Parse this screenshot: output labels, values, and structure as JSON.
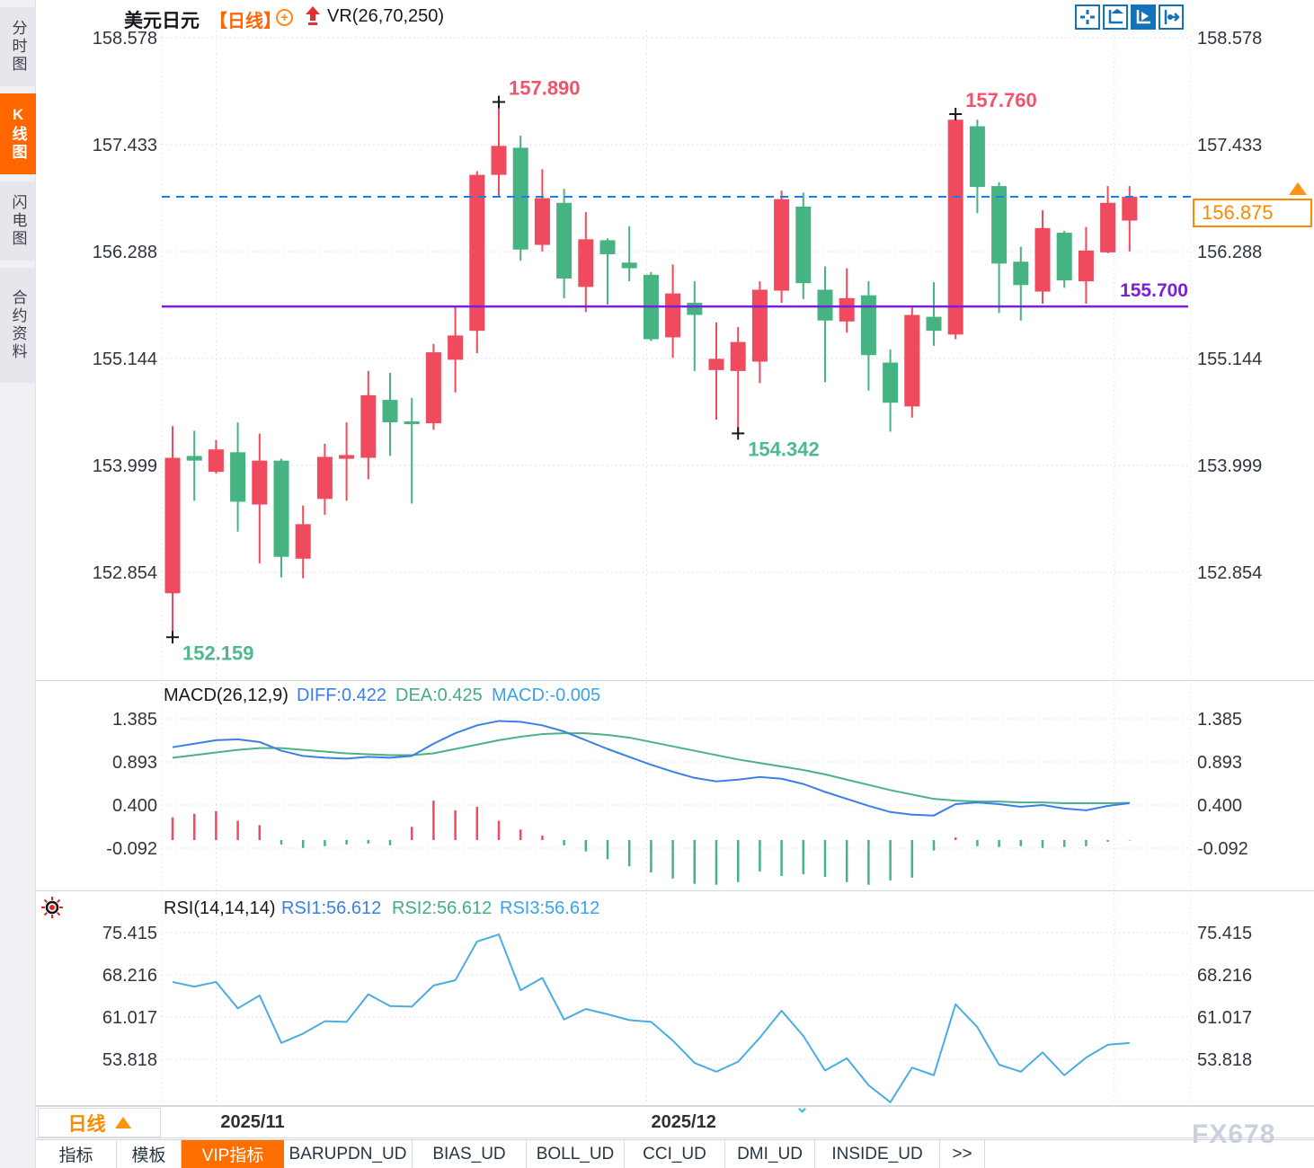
{
  "header": {
    "symbol": "美元日元",
    "period_tag": "【日线】",
    "indicator": "VR(26,70,250)"
  },
  "sidebar": {
    "items": [
      {
        "label": "分时图",
        "active": false
      },
      {
        "label": "K线图",
        "active": true
      },
      {
        "label": "闪电图",
        "active": false
      },
      {
        "label": "合约资料",
        "active": false
      }
    ]
  },
  "toolbar": {
    "icons": [
      "pan-cross-icon",
      "axis-range-icon",
      "auto-scale-icon",
      "jump-to-latest-icon"
    ]
  },
  "macd_panel": {
    "title": "MACD(26,12,9)",
    "diff_label": "DIFF:0.422",
    "dea_label": "DEA:0.425",
    "macd_label": "MACD:-0.005"
  },
  "rsi_panel": {
    "title": "RSI(14,14,14)",
    "rsi1_label": "RSI1:56.612",
    "rsi2_label": "RSI2:56.612",
    "rsi3_label": "RSI3:56.612"
  },
  "price_box": {
    "value": "156.875"
  },
  "support_label": "155.700",
  "xaxis": {
    "period": "日线"
  },
  "bottom_tabs": [
    {
      "label": "指标",
      "active": false
    },
    {
      "label": "模板",
      "active": false
    },
    {
      "label": "VIP指标",
      "active": true
    },
    {
      "label": "BARUPDN_UD",
      "active": false
    },
    {
      "label": "BIAS_UD",
      "active": false
    },
    {
      "label": "BOLL_UD",
      "active": false
    },
    {
      "label": "CCI_UD",
      "active": false
    },
    {
      "label": "DMI_UD",
      "active": false
    },
    {
      "label": "INSIDE_UD",
      "active": false
    },
    {
      "label": ">>",
      "active": false
    }
  ],
  "watermark": "FX678",
  "colors": {
    "up": "#ef4a5e",
    "down": "#46b383",
    "current_line": "#1a7fe8",
    "support_line": "#7b1fd9",
    "diff_line": "#3a7fe8",
    "dea_line": "#4cb184",
    "rsi_line": "#49ade2",
    "high_label": "#f2536a",
    "low_label": "#4db98d",
    "accent_orange": "#ff6600"
  },
  "chart_data": {
    "type": "candlestick",
    "title": "美元日元 日线 (USD/JPY daily)",
    "price_axis_ticks": [
      "158.578",
      "157.433",
      "156.288",
      "155.144",
      "153.999",
      "152.854"
    ],
    "macd_axis_ticks": [
      "1.385",
      "0.893",
      "0.400",
      "-0.092"
    ],
    "rsi_axis_ticks": [
      "75.415",
      "68.216",
      "61.017",
      "53.818"
    ],
    "x_ticks": [
      {
        "index": 2.0,
        "text": "2025/11"
      },
      {
        "index": 21.8,
        "text": "2025/12"
      },
      {
        "index": 43.3,
        "text": ""
      }
    ],
    "current_price": 156.875,
    "support_line": 155.7,
    "candles": [
      [
        152.63,
        154.42,
        152.16,
        154.08
      ],
      [
        154.1,
        154.37,
        153.62,
        154.05
      ],
      [
        153.93,
        154.27,
        153.91,
        154.17
      ],
      [
        154.14,
        154.46,
        153.29,
        153.61
      ],
      [
        153.58,
        154.34,
        152.95,
        154.05
      ],
      [
        154.05,
        154.07,
        152.8,
        153.02
      ],
      [
        153.0,
        153.57,
        152.79,
        153.37
      ],
      [
        153.64,
        154.23,
        153.47,
        154.09
      ],
      [
        154.07,
        154.46,
        153.62,
        154.11
      ],
      [
        154.08,
        155.01,
        153.85,
        154.75
      ],
      [
        154.7,
        154.99,
        154.1,
        154.46
      ],
      [
        154.47,
        154.72,
        153.59,
        154.44
      ],
      [
        154.45,
        155.3,
        154.38,
        155.21
      ],
      [
        155.13,
        155.71,
        154.78,
        155.39
      ],
      [
        155.44,
        157.15,
        155.2,
        157.11
      ],
      [
        157.11,
        157.89,
        156.88,
        157.42
      ],
      [
        157.4,
        157.53,
        156.19,
        156.31
      ],
      [
        156.36,
        157.17,
        156.29,
        156.86
      ],
      [
        156.81,
        156.96,
        155.79,
        156.0
      ],
      [
        155.91,
        156.71,
        155.64,
        156.42
      ],
      [
        156.41,
        156.43,
        155.72,
        156.26
      ],
      [
        156.17,
        156.56,
        155.97,
        156.11
      ],
      [
        156.04,
        156.07,
        155.33,
        155.35
      ],
      [
        155.37,
        156.15,
        155.15,
        155.84
      ],
      [
        155.74,
        155.97,
        155.01,
        155.61
      ],
      [
        155.02,
        155.53,
        154.49,
        155.14
      ],
      [
        155.01,
        155.48,
        154.34,
        155.32
      ],
      [
        155.11,
        155.97,
        154.88,
        155.88
      ],
      [
        155.87,
        156.94,
        155.74,
        156.85
      ],
      [
        156.77,
        156.92,
        155.78,
        155.95
      ],
      [
        155.88,
        156.13,
        154.89,
        155.55
      ],
      [
        155.54,
        156.11,
        155.42,
        155.79
      ],
      [
        155.82,
        155.97,
        154.8,
        155.18
      ],
      [
        155.1,
        155.24,
        154.36,
        154.67
      ],
      [
        154.63,
        155.71,
        154.51,
        155.61
      ],
      [
        155.59,
        155.96,
        155.28,
        155.44
      ],
      [
        155.4,
        157.76,
        155.35,
        157.7
      ],
      [
        157.63,
        157.7,
        156.7,
        156.98
      ],
      [
        156.99,
        157.03,
        155.63,
        156.16
      ],
      [
        156.18,
        156.34,
        155.55,
        155.93
      ],
      [
        155.86,
        156.73,
        155.73,
        156.54
      ],
      [
        156.49,
        156.51,
        155.9,
        155.98
      ],
      [
        155.97,
        156.55,
        155.73,
        156.3
      ],
      [
        156.28,
        156.99,
        156.27,
        156.81
      ],
      [
        156.62,
        156.99,
        156.29,
        156.875
      ]
    ],
    "annotations": [
      {
        "index": 15,
        "text": "157.890",
        "kind": "high",
        "price": 157.89
      },
      {
        "index": 36,
        "text": "157.760",
        "kind": "high",
        "price": 157.76
      },
      {
        "index": 26,
        "text": "154.342",
        "kind": "low",
        "price": 154.342
      },
      {
        "index": 0,
        "text": "152.159",
        "kind": "low",
        "price": 152.159
      }
    ],
    "macd": {
      "diff": [
        1.06,
        1.1,
        1.14,
        1.15,
        1.12,
        1.02,
        0.96,
        0.94,
        0.93,
        0.95,
        0.94,
        0.96,
        1.1,
        1.22,
        1.31,
        1.36,
        1.35,
        1.31,
        1.24,
        1.14,
        1.04,
        0.95,
        0.86,
        0.78,
        0.71,
        0.67,
        0.69,
        0.72,
        0.7,
        0.64,
        0.55,
        0.47,
        0.39,
        0.32,
        0.29,
        0.28,
        0.41,
        0.43,
        0.41,
        0.38,
        0.4,
        0.36,
        0.34,
        0.39,
        0.422
      ],
      "dea": [
        0.94,
        0.97,
        1.0,
        1.03,
        1.05,
        1.05,
        1.03,
        1.01,
        0.99,
        0.98,
        0.97,
        0.97,
        0.99,
        1.04,
        1.09,
        1.14,
        1.18,
        1.21,
        1.22,
        1.22,
        1.2,
        1.17,
        1.12,
        1.07,
        1.02,
        0.97,
        0.92,
        0.88,
        0.84,
        0.8,
        0.75,
        0.69,
        0.63,
        0.57,
        0.52,
        0.47,
        0.45,
        0.44,
        0.44,
        0.43,
        0.43,
        0.42,
        0.42,
        0.42,
        0.425
      ],
      "hist": [
        0.26,
        0.3,
        0.33,
        0.22,
        0.17,
        -0.05,
        -0.09,
        -0.07,
        -0.05,
        -0.04,
        -0.06,
        0.15,
        0.45,
        0.34,
        0.38,
        0.22,
        0.12,
        0.05,
        -0.06,
        -0.13,
        -0.22,
        -0.3,
        -0.37,
        -0.44,
        -0.5,
        -0.51,
        -0.48,
        -0.36,
        -0.41,
        -0.39,
        -0.42,
        -0.48,
        -0.51,
        -0.46,
        -0.43,
        -0.12,
        0.03,
        -0.07,
        -0.08,
        -0.07,
        -0.09,
        -0.08,
        -0.07,
        -0.02,
        -0.005
      ]
    },
    "rsi": [
      67.0,
      66.2,
      67.0,
      62.5,
      64.7,
      56.6,
      58.2,
      60.3,
      60.2,
      64.9,
      62.9,
      62.8,
      66.4,
      67.3,
      73.9,
      75.1,
      65.6,
      67.7,
      60.6,
      62.4,
      61.5,
      60.5,
      60.2,
      57.0,
      53.2,
      51.7,
      53.4,
      57.5,
      62.1,
      57.8,
      51.9,
      54.0,
      49.4,
      46.5,
      52.4,
      51.1,
      63.2,
      59.3,
      52.9,
      51.7,
      55.0,
      51.1,
      54.1,
      56.3,
      56.6
    ]
  }
}
